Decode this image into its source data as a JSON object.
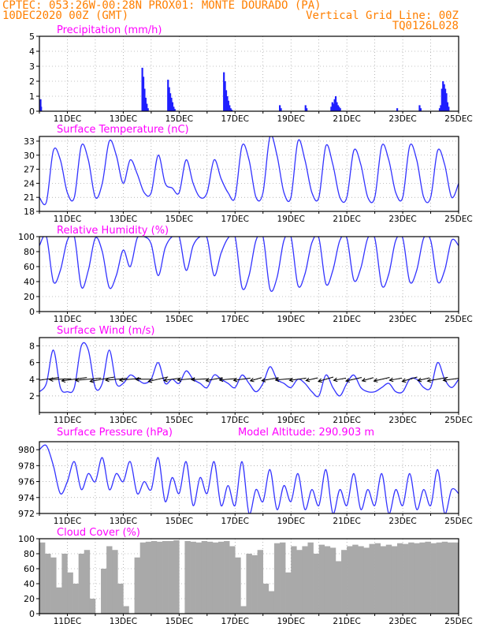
{
  "header": {
    "line1": "CPTEC:  053:26W-00:28N  PROX01: MONTE DOURADO (PA)",
    "line2_left": "10DEC2020 00Z (GMT)",
    "line2_right": "Vertical Grid Line: 00Z",
    "line3_right": "TQ0126L028"
  },
  "colors": {
    "header": "#ff7f00",
    "title": "#ff00ff",
    "line": "#3333ff",
    "bar": "#1f1fff",
    "cloud": "#a9a9a9",
    "grid": "#888888"
  },
  "x_ticks": [
    "11DEC",
    "13DEC",
    "15DEC",
    "17DEC",
    "19DEC",
    "21DEC",
    "23DEC",
    "25DEC"
  ],
  "chart_data": [
    {
      "id": "precip",
      "type": "bar",
      "title": "Precipitation (mm/h)",
      "x_unit": "days since 10DEC2020 00Z",
      "ylim": [
        0,
        5
      ],
      "yticks": [
        0,
        1,
        2,
        3,
        4,
        5
      ],
      "x": [
        0.04,
        0.06,
        3.68,
        3.72,
        3.76,
        3.8,
        3.84,
        3.88,
        4.6,
        4.64,
        4.68,
        4.72,
        4.76,
        4.8,
        4.84,
        6.6,
        6.64,
        6.68,
        6.72,
        6.76,
        6.8,
        6.84,
        6.88,
        8.6,
        8.64,
        9.52,
        9.56,
        10.44,
        10.48,
        10.52,
        10.56,
        10.6,
        10.64,
        10.68,
        10.72,
        10.76,
        12.8,
        13.6,
        13.64,
        14.32,
        14.36,
        14.4,
        14.44,
        14.48,
        14.52,
        14.56,
        14.6,
        14.64
      ],
      "values": [
        0.8,
        0.3,
        2.9,
        2.3,
        1.5,
        0.9,
        0.5,
        0.2,
        2.1,
        1.6,
        1.2,
        0.9,
        0.6,
        0.3,
        0.15,
        2.6,
        2.0,
        1.4,
        1.0,
        0.7,
        0.4,
        0.2,
        0.1,
        0.4,
        0.2,
        0.4,
        0.2,
        0.3,
        0.6,
        0.5,
        0.8,
        1.0,
        0.6,
        0.4,
        0.3,
        0.2,
        0.2,
        0.4,
        0.2,
        0.2,
        0.4,
        1.5,
        2.0,
        1.8,
        1.5,
        1.2,
        0.6,
        0.3
      ]
    },
    {
      "id": "temp",
      "type": "line",
      "title": "Surface Temperature (nC)",
      "x_unit": "days since 10DEC2020 00Z",
      "ylim": [
        18,
        34
      ],
      "yticks": [
        18,
        21,
        24,
        27,
        30,
        33
      ],
      "x": [
        0,
        0.25,
        0.5,
        0.75,
        1,
        1.25,
        1.5,
        1.75,
        2,
        2.25,
        2.5,
        2.75,
        3,
        3.25,
        3.5,
        3.75,
        4,
        4.25,
        4.5,
        4.75,
        5,
        5.25,
        5.5,
        5.75,
        6,
        6.25,
        6.5,
        6.75,
        7,
        7.25,
        7.5,
        7.75,
        8,
        8.25,
        8.5,
        8.75,
        9,
        9.25,
        9.5,
        9.75,
        10,
        10.25,
        10.5,
        10.75,
        11,
        11.25,
        11.5,
        11.75,
        12,
        12.25,
        12.5,
        12.75,
        13,
        13.25,
        13.5,
        13.75,
        14,
        14.25,
        14.5,
        14.75,
        15
      ],
      "values": [
        21,
        20,
        31,
        29,
        22,
        21,
        32,
        29,
        21,
        24,
        33,
        30,
        24,
        29,
        26,
        22,
        22,
        30,
        24,
        23,
        22,
        29,
        24,
        21,
        22,
        29,
        25,
        22,
        21,
        32,
        29,
        21,
        22,
        34,
        30,
        22,
        21,
        33,
        29,
        22,
        21,
        32,
        28,
        21,
        21,
        31,
        28,
        21,
        21,
        32,
        29,
        22,
        21,
        32,
        29,
        21,
        21,
        31,
        28,
        21,
        24
      ]
    },
    {
      "id": "rh",
      "type": "line",
      "title": "Relative Humidity (%)",
      "x_unit": "days since 10DEC2020 00Z",
      "ylim": [
        0,
        100
      ],
      "yticks": [
        0,
        20,
        40,
        60,
        80,
        100
      ],
      "x": [
        0,
        0.25,
        0.5,
        0.75,
        1,
        1.25,
        1.5,
        1.75,
        2,
        2.25,
        2.5,
        2.75,
        3,
        3.25,
        3.5,
        3.75,
        4,
        4.25,
        4.5,
        4.75,
        5,
        5.25,
        5.5,
        5.75,
        6,
        6.25,
        6.5,
        6.75,
        7,
        7.25,
        7.5,
        7.75,
        8,
        8.25,
        8.5,
        8.75,
        9,
        9.25,
        9.5,
        9.75,
        10,
        10.25,
        10.5,
        10.75,
        11,
        11.25,
        11.5,
        11.75,
        12,
        12.25,
        12.5,
        12.75,
        13,
        13.25,
        13.5,
        13.75,
        14,
        14.25,
        14.5,
        14.75,
        15
      ],
      "values": [
        88,
        100,
        40,
        55,
        95,
        100,
        33,
        55,
        98,
        80,
        32,
        48,
        82,
        60,
        98,
        100,
        90,
        48,
        85,
        100,
        100,
        55,
        88,
        100,
        98,
        48,
        78,
        98,
        100,
        32,
        48,
        95,
        100,
        30,
        45,
        95,
        100,
        35,
        50,
        92,
        98,
        37,
        55,
        95,
        98,
        42,
        58,
        98,
        98,
        35,
        50,
        95,
        98,
        40,
        55,
        98,
        95,
        40,
        55,
        95,
        88
      ]
    },
    {
      "id": "wind",
      "type": "line",
      "title": "Surface Wind (m/s)",
      "x_unit": "days since 10DEC2020 00Z",
      "ylim": [
        0,
        9
      ],
      "yticks": [
        2,
        4,
        6,
        8
      ],
      "x": [
        0,
        0.25,
        0.5,
        0.75,
        1,
        1.25,
        1.5,
        1.75,
        2,
        2.25,
        2.5,
        2.75,
        3,
        3.25,
        3.5,
        3.75,
        4,
        4.25,
        4.5,
        4.75,
        5,
        5.25,
        5.5,
        5.75,
        6,
        6.25,
        6.5,
        6.75,
        7,
        7.25,
        7.5,
        7.75,
        8,
        8.25,
        8.5,
        8.75,
        9,
        9.25,
        9.5,
        9.75,
        10,
        10.25,
        10.5,
        10.75,
        11,
        11.25,
        11.5,
        11.75,
        12,
        12.25,
        12.5,
        12.75,
        13,
        13.25,
        13.5,
        13.75,
        14,
        14.25,
        14.5,
        14.75,
        15
      ],
      "values": [
        2.5,
        3.5,
        7.5,
        3,
        2.5,
        3,
        8,
        7.5,
        3,
        3.5,
        7.5,
        3.5,
        3.5,
        4.5,
        4,
        3.5,
        4,
        6,
        3.5,
        4,
        3.5,
        5,
        4,
        3.5,
        3,
        4.5,
        4,
        3.5,
        3,
        4.5,
        3.5,
        2.5,
        3.5,
        5.5,
        4,
        3.5,
        3,
        4,
        3.5,
        2.5,
        2,
        4.5,
        3,
        2,
        3.5,
        4.5,
        3,
        2.5,
        2.5,
        3,
        3.5,
        2.5,
        2.5,
        4,
        4,
        3,
        3,
        6,
        4,
        3,
        4
      ]
    },
    {
      "id": "pressure",
      "type": "line",
      "title": "Surface Pressure (hPa)",
      "annotation": "Model Altitude: 290.903 m",
      "x_unit": "days since 10DEC2020 00Z",
      "ylim": [
        972,
        981
      ],
      "yticks": [
        972,
        974,
        976,
        978,
        980
      ],
      "x": [
        0,
        0.25,
        0.5,
        0.75,
        1,
        1.25,
        1.5,
        1.75,
        2,
        2.25,
        2.5,
        2.75,
        3,
        3.25,
        3.5,
        3.75,
        4,
        4.25,
        4.5,
        4.75,
        5,
        5.25,
        5.5,
        5.75,
        6,
        6.25,
        6.5,
        6.75,
        7,
        7.25,
        7.5,
        7.75,
        8,
        8.25,
        8.5,
        8.75,
        9,
        9.25,
        9.5,
        9.75,
        10,
        10.25,
        10.5,
        10.75,
        11,
        11.25,
        11.5,
        11.75,
        12,
        12.25,
        12.5,
        12.75,
        13,
        13.25,
        13.5,
        13.75,
        14,
        14.25,
        14.5,
        14.75,
        15
      ],
      "values": [
        980,
        980.5,
        978,
        974.5,
        976,
        978.5,
        975,
        977,
        976,
        979,
        975,
        977,
        976,
        978.5,
        974.5,
        976,
        975,
        979,
        973.5,
        976.5,
        974.5,
        978.5,
        973,
        976.5,
        974.5,
        978.5,
        973,
        975.5,
        973,
        978.5,
        972,
        975,
        973.5,
        977.5,
        972.5,
        975.5,
        973.5,
        977,
        972.5,
        975,
        973,
        977.5,
        972,
        975,
        973,
        977,
        972.5,
        975,
        973,
        977,
        972,
        975,
        973,
        977,
        972.5,
        975,
        973,
        977.5,
        972,
        975,
        974.5
      ]
    },
    {
      "id": "cloud",
      "type": "area",
      "title": "Cloud Cover (%)",
      "x_unit": "days since 10DEC2020 00Z",
      "ylim": [
        0,
        100
      ],
      "yticks": [
        0,
        20,
        40,
        60,
        80,
        100
      ],
      "x": [
        0,
        0.2,
        0.4,
        0.6,
        0.8,
        1.0,
        1.2,
        1.4,
        1.6,
        1.8,
        2.0,
        2.2,
        2.4,
        2.6,
        2.8,
        3.0,
        3.2,
        3.4,
        3.6,
        3.8,
        4.0,
        4.2,
        4.4,
        4.6,
        4.8,
        5.0,
        5.2,
        5.4,
        5.6,
        5.8,
        6.0,
        6.2,
        6.4,
        6.6,
        6.8,
        7.0,
        7.2,
        7.4,
        7.6,
        7.8,
        8.0,
        8.2,
        8.4,
        8.6,
        8.8,
        9.0,
        9.2,
        9.4,
        9.6,
        9.8,
        10.0,
        10.2,
        10.4,
        10.6,
        10.8,
        11.0,
        11.2,
        11.4,
        11.6,
        11.8,
        12.0,
        12.2,
        12.4,
        12.6,
        12.8,
        13.0,
        13.2,
        13.4,
        13.6,
        13.8,
        14.0,
        14.2,
        14.4,
        14.6,
        14.8,
        15.0
      ],
      "values": [
        95,
        80,
        75,
        35,
        80,
        55,
        40,
        80,
        85,
        20,
        0,
        60,
        90,
        85,
        40,
        10,
        0,
        75,
        95,
        96,
        97,
        96,
        97,
        97,
        98,
        0,
        97,
        96,
        95,
        97,
        96,
        95,
        96,
        97,
        90,
        75,
        10,
        80,
        78,
        85,
        40,
        30,
        94,
        95,
        55,
        90,
        85,
        90,
        95,
        80,
        92,
        90,
        88,
        70,
        85,
        90,
        92,
        90,
        88,
        93,
        94,
        90,
        92,
        90,
        94,
        93,
        95,
        94,
        95,
        96,
        94,
        95,
        96,
        95,
        95,
        96
      ]
    }
  ],
  "wind_barbs": {
    "x": [
      0.25,
      0.75,
      1.25,
      1.75,
      2.25,
      2.75,
      3.25,
      3.75,
      4.25,
      4.75,
      5.25,
      5.75,
      6.25,
      6.75,
      7.25,
      7.75,
      8.25,
      8.75,
      9.25,
      9.75,
      10.25,
      10.75,
      11.25,
      11.75,
      12.25,
      12.75,
      13.25,
      13.75,
      14.25,
      14.75
    ],
    "speed": [
      6,
      5,
      6,
      6,
      6,
      5,
      5,
      4,
      5,
      4,
      4,
      4,
      4,
      4,
      4,
      3,
      4,
      4,
      4,
      3,
      4,
      3,
      4,
      3,
      4,
      3,
      4,
      3,
      5,
      4
    ],
    "dir_from_deg": [
      75,
      85,
      75,
      80,
      70,
      80,
      80,
      90,
      65,
      75,
      80,
      85,
      70,
      80,
      75,
      60,
      70,
      80,
      75,
      65,
      60,
      70,
      65,
      60,
      65,
      70,
      60,
      65,
      70,
      75
    ]
  }
}
